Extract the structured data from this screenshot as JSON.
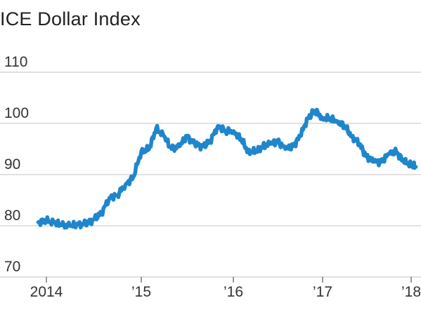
{
  "chart_data": {
    "type": "line",
    "title": "ICE Dollar Index",
    "xlabel": "",
    "ylabel": "",
    "ylim": [
      70,
      110
    ],
    "yticks": [
      {
        "value": 70,
        "label": "70"
      },
      {
        "value": 80,
        "label": "80"
      },
      {
        "value": 90,
        "label": "90"
      },
      {
        "value": 100,
        "label": "100"
      },
      {
        "value": 110,
        "label": "110"
      }
    ],
    "xlim": [
      "2013-12-01",
      "2018-02-01"
    ],
    "xticks": [
      {
        "value": "2014-01-01",
        "label": "2014"
      },
      {
        "value": "2015-01-01",
        "label": "’15"
      },
      {
        "value": "2016-01-01",
        "label": "’16"
      },
      {
        "value": "2017-01-01",
        "label": "’17"
      },
      {
        "value": "2018-01-01",
        "label": "’18"
      }
    ],
    "grid": true,
    "legend": "none",
    "line_color": "#1f86cc",
    "series": [
      {
        "x": [
          "2013-12-01",
          "2014-01-01",
          "2014-02-01",
          "2014-03-01",
          "2014-04-01",
          "2014-05-01",
          "2014-06-01",
          "2014-07-01",
          "2014-08-01",
          "2014-09-01",
          "2014-10-01",
          "2014-11-01",
          "2014-12-01",
          "2015-01-01",
          "2015-02-01",
          "2015-03-01",
          "2015-04-01",
          "2015-05-01",
          "2015-06-01",
          "2015-07-01",
          "2015-08-01",
          "2015-09-01",
          "2015-10-01",
          "2015-11-01",
          "2015-12-01",
          "2016-01-01",
          "2016-02-01",
          "2016-03-01",
          "2016-04-01",
          "2016-05-01",
          "2016-06-01",
          "2016-07-01",
          "2016-08-01",
          "2016-09-01",
          "2016-10-01",
          "2016-11-01",
          "2016-12-01",
          "2017-01-01",
          "2017-02-01",
          "2017-03-01",
          "2017-04-01",
          "2017-05-01",
          "2017-06-01",
          "2017-07-01",
          "2017-08-01",
          "2017-09-01",
          "2017-10-01",
          "2017-11-01",
          "2017-12-01",
          "2018-01-01",
          "2018-01-20"
        ],
        "y": [
          80.7,
          81.0,
          80.6,
          80.1,
          80.0,
          80.2,
          80.4,
          81.2,
          82.5,
          85.5,
          86.0,
          88.0,
          89.5,
          94.5,
          95.0,
          99.0,
          97.5,
          95.0,
          95.5,
          97.5,
          96.0,
          95.5,
          96.5,
          99.5,
          98.5,
          98.5,
          97.0,
          94.5,
          94.5,
          95.5,
          96.0,
          96.5,
          95.0,
          95.5,
          97.5,
          101.0,
          102.5,
          101.0,
          101.0,
          100.5,
          99.5,
          97.5,
          96.0,
          93.5,
          92.5,
          92.5,
          94.0,
          94.5,
          92.5,
          92.0,
          91.5
        ]
      }
    ]
  }
}
